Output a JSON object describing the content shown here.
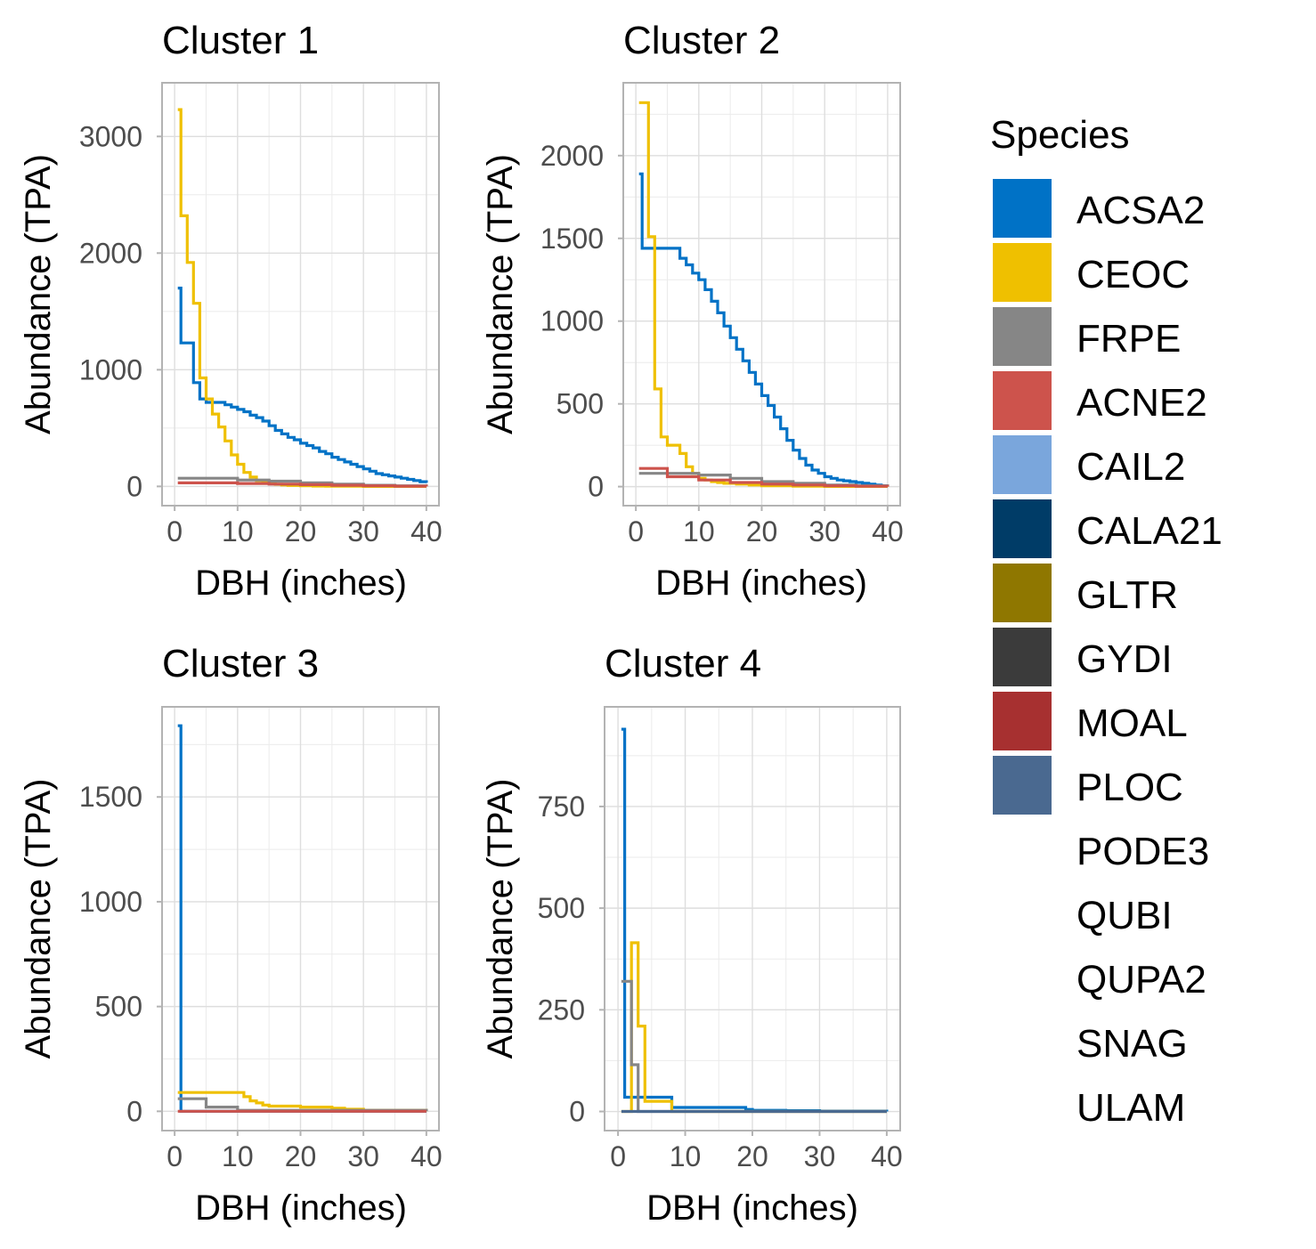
{
  "legend": {
    "title": "Species",
    "items": [
      {
        "label": "ACSA2",
        "color": "#0072C6"
      },
      {
        "label": "CEOC",
        "color": "#EFC000"
      },
      {
        "label": "FRPE",
        "color": "#868686"
      },
      {
        "label": "ACNE2",
        "color": "#CD534C"
      },
      {
        "label": "CAIL2",
        "color": "#7AA6DC"
      },
      {
        "label": "CALA21",
        "color": "#003C67"
      },
      {
        "label": "GLTR",
        "color": "#8F7700"
      },
      {
        "label": "GYDI",
        "color": "#3B3B3B"
      },
      {
        "label": "MOAL",
        "color": "#A73030"
      },
      {
        "label": "PLOC",
        "color": "#4A6990"
      },
      {
        "label": "PODE3",
        "color": null
      },
      {
        "label": "QUBI",
        "color": null
      },
      {
        "label": "QUPA2",
        "color": null
      },
      {
        "label": "SNAG",
        "color": null
      },
      {
        "label": "ULAM",
        "color": null
      }
    ]
  },
  "chart_data": [
    {
      "type": "line",
      "title": "Cluster 1",
      "xlabel": "DBH (inches)",
      "ylabel": "Abundance (TPA)",
      "xlim": [
        -2,
        42
      ],
      "ylim": [
        -165,
        3460
      ],
      "xticks": [
        0,
        10,
        20,
        30,
        40
      ],
      "yticks": [
        0,
        1000,
        2000,
        3000
      ],
      "ytick_labels": [
        "0",
        "1000",
        "2000",
        "3000"
      ],
      "grid": true,
      "series": [
        {
          "name": "ACSA2",
          "color": "#0072C6",
          "x": [
            0.5,
            1,
            2,
            3,
            4,
            5,
            6,
            7,
            8,
            9,
            10,
            11,
            12,
            13,
            14,
            15,
            16,
            17,
            18,
            19,
            20,
            21,
            22,
            23,
            24,
            25,
            26,
            27,
            28,
            29,
            30,
            31,
            32,
            33,
            34,
            35,
            36,
            37,
            38,
            39,
            40
          ],
          "y": [
            1700,
            1230,
            1230,
            890,
            750,
            720,
            720,
            720,
            700,
            680,
            660,
            640,
            610,
            590,
            560,
            520,
            480,
            450,
            420,
            400,
            370,
            350,
            330,
            300,
            280,
            250,
            230,
            210,
            190,
            170,
            150,
            130,
            110,
            100,
            90,
            80,
            70,
            60,
            50,
            40,
            30
          ]
        },
        {
          "name": "CEOC",
          "color": "#EFC000",
          "x": [
            0.5,
            1,
            2,
            3,
            4,
            5,
            6,
            7,
            8,
            9,
            10,
            11,
            12,
            13,
            14,
            15,
            16,
            17,
            18,
            20,
            22,
            24,
            26,
            28,
            30,
            40
          ],
          "y": [
            3230,
            2320,
            1920,
            1570,
            930,
            750,
            620,
            510,
            390,
            270,
            190,
            120,
            80,
            50,
            35,
            25,
            18,
            12,
            8,
            5,
            3,
            2,
            1,
            1,
            0,
            0
          ]
        },
        {
          "name": "FRPE",
          "color": "#868686",
          "x": [
            0.5,
            5,
            10,
            15,
            20,
            25,
            30,
            35,
            40
          ],
          "y": [
            70,
            70,
            55,
            45,
            30,
            20,
            10,
            5,
            0
          ]
        },
        {
          "name": "ACNE2",
          "color": "#CD534C",
          "x": [
            0.5,
            5,
            10,
            15,
            20,
            25,
            30,
            35,
            40
          ],
          "y": [
            30,
            30,
            25,
            20,
            15,
            10,
            5,
            2,
            0
          ]
        }
      ]
    },
    {
      "type": "line",
      "title": "Cluster 2",
      "xlabel": "DBH (inches)",
      "ylabel": "Abundance (TPA)",
      "xlim": [
        -2,
        42
      ],
      "ylim": [
        -115,
        2440
      ],
      "xticks": [
        0,
        10,
        20,
        30,
        40
      ],
      "yticks": [
        0,
        500,
        1000,
        1500,
        2000
      ],
      "ytick_labels": [
        "0",
        "500",
        "1000",
        "1500",
        "2000"
      ],
      "grid": true,
      "series": [
        {
          "name": "ACSA2",
          "color": "#0072C6",
          "x": [
            0.5,
            1,
            2,
            3,
            4,
            5,
            6,
            7,
            8,
            9,
            10,
            11,
            12,
            13,
            14,
            15,
            16,
            17,
            18,
            19,
            20,
            21,
            22,
            23,
            24,
            25,
            26,
            27,
            28,
            29,
            30,
            31,
            32,
            33,
            34,
            35,
            36,
            37,
            38,
            39,
            40
          ],
          "y": [
            1890,
            1440,
            1440,
            1440,
            1440,
            1440,
            1440,
            1380,
            1340,
            1290,
            1250,
            1190,
            1120,
            1050,
            970,
            900,
            830,
            760,
            690,
            620,
            550,
            490,
            420,
            350,
            280,
            220,
            170,
            130,
            100,
            80,
            60,
            50,
            40,
            35,
            30,
            25,
            20,
            15,
            10,
            5,
            5
          ]
        },
        {
          "name": "CEOC",
          "color": "#EFC000",
          "x": [
            0.5,
            1,
            2,
            3,
            4,
            5,
            6,
            7,
            8,
            9,
            10,
            11,
            12,
            13,
            14,
            16,
            18,
            20,
            25,
            30,
            40
          ],
          "y": [
            2320,
            2320,
            1510,
            590,
            300,
            250,
            250,
            200,
            120,
            80,
            50,
            40,
            30,
            25,
            20,
            15,
            10,
            5,
            2,
            1,
            0
          ]
        },
        {
          "name": "FRPE",
          "color": "#868686",
          "x": [
            0.5,
            5,
            10,
            15,
            20,
            25,
            30,
            35,
            40
          ],
          "y": [
            80,
            80,
            70,
            50,
            30,
            20,
            10,
            5,
            0
          ]
        },
        {
          "name": "ACNE2",
          "color": "#CD534C",
          "x": [
            0.5,
            2,
            5,
            10,
            15,
            20,
            25,
            30,
            35,
            40
          ],
          "y": [
            110,
            110,
            60,
            40,
            25,
            15,
            10,
            5,
            2,
            0
          ]
        }
      ]
    },
    {
      "type": "line",
      "title": "Cluster 3",
      "xlabel": "DBH (inches)",
      "ylabel": "Abundance (TPA)",
      "xlim": [
        -2,
        42
      ],
      "ylim": [
        -92,
        1930
      ],
      "xticks": [
        0,
        10,
        20,
        30,
        40
      ],
      "yticks": [
        0,
        500,
        1000,
        1500
      ],
      "ytick_labels": [
        "0",
        "500",
        "1000",
        "1500"
      ],
      "grid": true,
      "series": [
        {
          "name": "ACSA2",
          "color": "#0072C6",
          "x": [
            0.5,
            1,
            2,
            40
          ],
          "y": [
            1840,
            0,
            0,
            0
          ]
        },
        {
          "name": "CEOC",
          "color": "#EFC000",
          "x": [
            0.5,
            5,
            10,
            11,
            12,
            13,
            14,
            15,
            20,
            25,
            27,
            30,
            40
          ],
          "y": [
            90,
            90,
            90,
            70,
            50,
            40,
            30,
            25,
            20,
            15,
            10,
            5,
            0
          ]
        },
        {
          "name": "FRPE",
          "color": "#868686",
          "x": [
            0.5,
            5,
            10,
            40
          ],
          "y": [
            60,
            20,
            5,
            0
          ]
        },
        {
          "name": "ACNE2",
          "color": "#CD534C",
          "x": [
            0.5,
            40
          ],
          "y": [
            0,
            0
          ]
        }
      ]
    },
    {
      "type": "line",
      "title": "Cluster 4",
      "xlabel": "DBH (inches)",
      "ylabel": "Abundance (TPA)",
      "xlim": [
        -2,
        42
      ],
      "ylim": [
        -47,
        995
      ],
      "xticks": [
        0,
        10,
        20,
        30,
        40
      ],
      "yticks": [
        0,
        250,
        500,
        750
      ],
      "ytick_labels": [
        "0",
        "250",
        "500",
        "750"
      ],
      "grid": true,
      "series": [
        {
          "name": "ACSA2",
          "color": "#0072C6",
          "x": [
            0.5,
            1,
            2,
            8,
            10,
            15,
            19,
            20,
            25,
            30,
            40
          ],
          "y": [
            940,
            35,
            35,
            10,
            10,
            10,
            5,
            3,
            2,
            1,
            0
          ]
        },
        {
          "name": "CEOC",
          "color": "#EFC000",
          "x": [
            0.5,
            2,
            3,
            4,
            8,
            40
          ],
          "y": [
            0,
            415,
            210,
            25,
            0,
            0
          ]
        },
        {
          "name": "FRPE",
          "color": "#868686",
          "x": [
            0.5,
            1,
            2,
            3,
            40
          ],
          "y": [
            320,
            320,
            115,
            0,
            0
          ]
        },
        {
          "name": "PLOC",
          "color": "#4A6990",
          "x": [
            0.5,
            40
          ],
          "y": [
            0,
            0
          ]
        }
      ]
    }
  ]
}
